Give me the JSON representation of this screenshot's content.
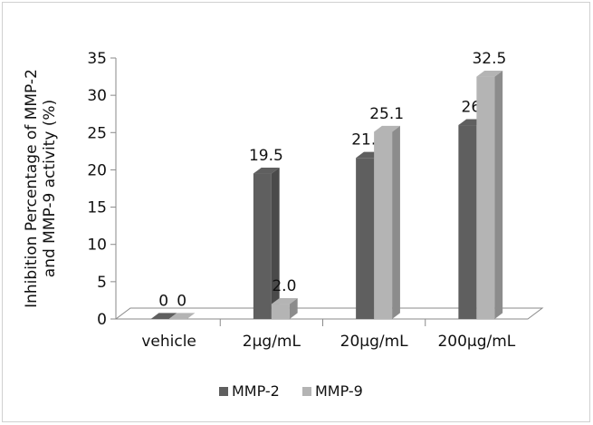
{
  "chart_data": {
    "type": "bar",
    "title": "",
    "xlabel": "",
    "ylabel_lines": [
      "Inhibition Percentage of MMP-2",
      "and   MMP-9 activity (%)"
    ],
    "categories": [
      "vehicle",
      "2µg/mL",
      "20µg/mL",
      "200µg/mL"
    ],
    "series": [
      {
        "name": "MMP-2",
        "values": [
          0,
          19.5,
          21.6,
          26
        ],
        "labels": [
          "0",
          "19.5",
          "21.6",
          "26"
        ],
        "color": "#5f5f5f"
      },
      {
        "name": "MMP-9",
        "values": [
          0,
          2.0,
          25.1,
          32.5
        ],
        "labels": [
          "0",
          "2.0",
          "25.1",
          "32.5"
        ],
        "color": "#b4b4b4"
      }
    ],
    "ylim": [
      0,
      35
    ],
    "yticks": [
      "0",
      "5",
      "10",
      "15",
      "20",
      "25",
      "30",
      "35"
    ],
    "grid": false,
    "legend_position": "bottom",
    "style": "3d-clustered-column"
  }
}
